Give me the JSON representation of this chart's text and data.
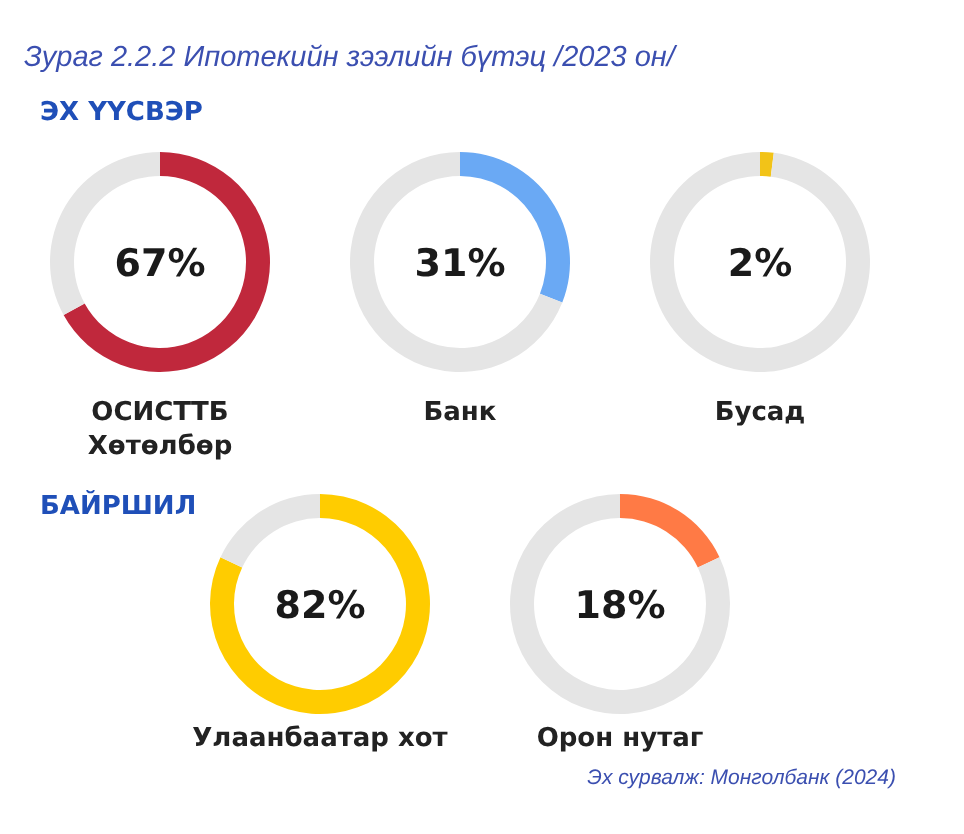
{
  "chart_data": [
    {
      "type": "donut",
      "title": "Зураг 2.2.2 Ипотекийн зээлийн бүтэц /2023 он/",
      "subtitle": "ЭХ ҮҮСВЭР",
      "xlabel": "ОСИСТТБ Хөтөлбөр",
      "categories": [
        null,
        null
      ],
      "values": [
        67,
        33
      ],
      "colors": [
        "#c0283c",
        "#e5e5e5"
      ],
      "annotations": [
        "67%"
      ]
    },
    {
      "type": "donut",
      "xlabel": "Банк",
      "categories": [
        null,
        null
      ],
      "values": [
        31,
        69
      ],
      "colors": [
        "#6aa9f4",
        "#e5e5e5"
      ],
      "annotations": [
        "31%"
      ]
    },
    {
      "type": "donut",
      "xlabel": "Бусад",
      "categories": [
        null,
        null
      ],
      "values": [
        2,
        98
      ],
      "colors": [
        "#f2c318",
        "#e5e5e5"
      ],
      "annotations": [
        "2%"
      ]
    },
    {
      "type": "donut",
      "subtitle": "БАЙРШИЛ",
      "xlabel": "Улаанбаатар хот",
      "categories": [
        null,
        null
      ],
      "values": [
        82,
        18
      ],
      "colors": [
        "#ffcc00",
        "#e5e5e5"
      ],
      "annotations": [
        "82%"
      ]
    },
    {
      "type": "donut",
      "xlabel": "Орон нутаг",
      "categories": [
        null,
        null
      ],
      "values": [
        18,
        82
      ],
      "colors": [
        "#ff7a45",
        "#e5e5e5"
      ],
      "annotations": [
        "18%",
        "Эх сурвалж: Монголбанк (2024)"
      ]
    }
  ]
}
